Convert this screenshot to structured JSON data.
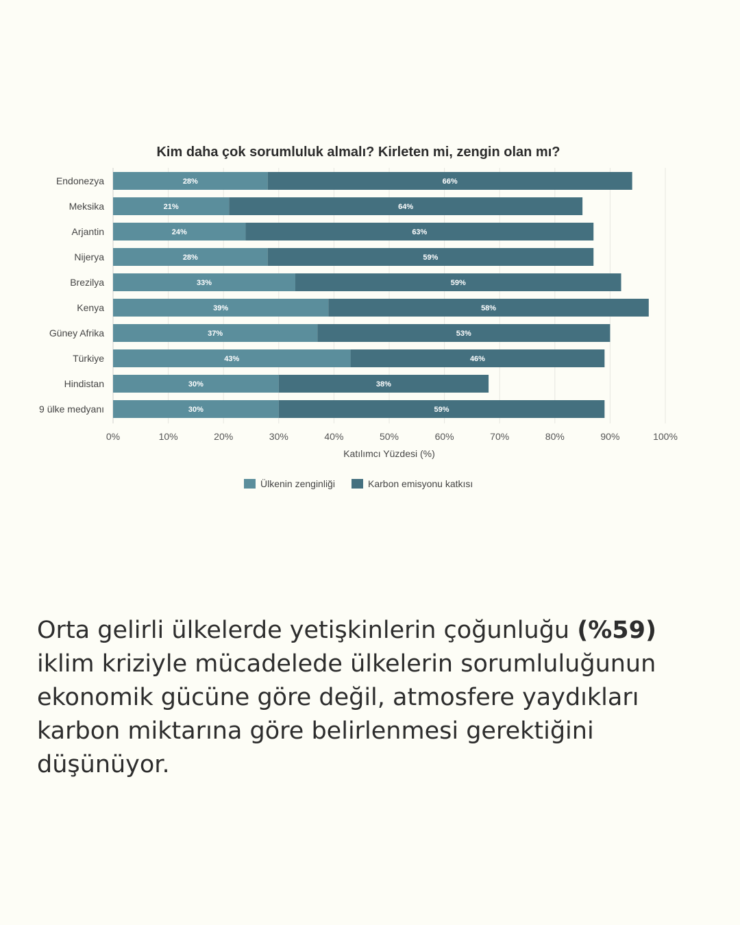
{
  "chart_data": {
    "type": "bar",
    "orientation": "horizontal",
    "stacked": true,
    "title": "Kim daha çok sorumluluk almalı? Kirleten mi, zengin olan mı?",
    "xlabel": "Katılımcı Yüzdesi (%)",
    "xlim": [
      0,
      100
    ],
    "xticks": [
      "0%",
      "10%",
      "20%",
      "30%",
      "40%",
      "50%",
      "60%",
      "70%",
      "80%",
      "90%",
      "100%"
    ],
    "grid": true,
    "legend_position": "bottom",
    "categories": [
      "Endonezya",
      "Meksika",
      "Arjantin",
      "Nijerya",
      "Brezilya",
      "Kenya",
      "Güney Afrika",
      "Türkiye",
      "Hindistan",
      "9 ülke medyanı"
    ],
    "series": [
      {
        "name": "Ülkenin zenginliği",
        "color": "#5b8e9c",
        "values": [
          28,
          21,
          24,
          28,
          33,
          39,
          37,
          43,
          30,
          30
        ]
      },
      {
        "name": "Karbon emisyonu katkısı",
        "color": "#44707f",
        "values": [
          66,
          64,
          63,
          59,
          59,
          58,
          53,
          46,
          38,
          59
        ]
      }
    ]
  },
  "caption": {
    "before": "Orta gelirli ülkelerde yetişkinlerin çoğunluğu ",
    "bold": "(%59)",
    "after": " iklim kriziyle mücadelede ülkelerin sorumluluğunun ekonomik gücüne göre değil, atmosfere yaydıkları karbon miktarına göre belirlenmesi gerektiğini düşünüyor."
  }
}
